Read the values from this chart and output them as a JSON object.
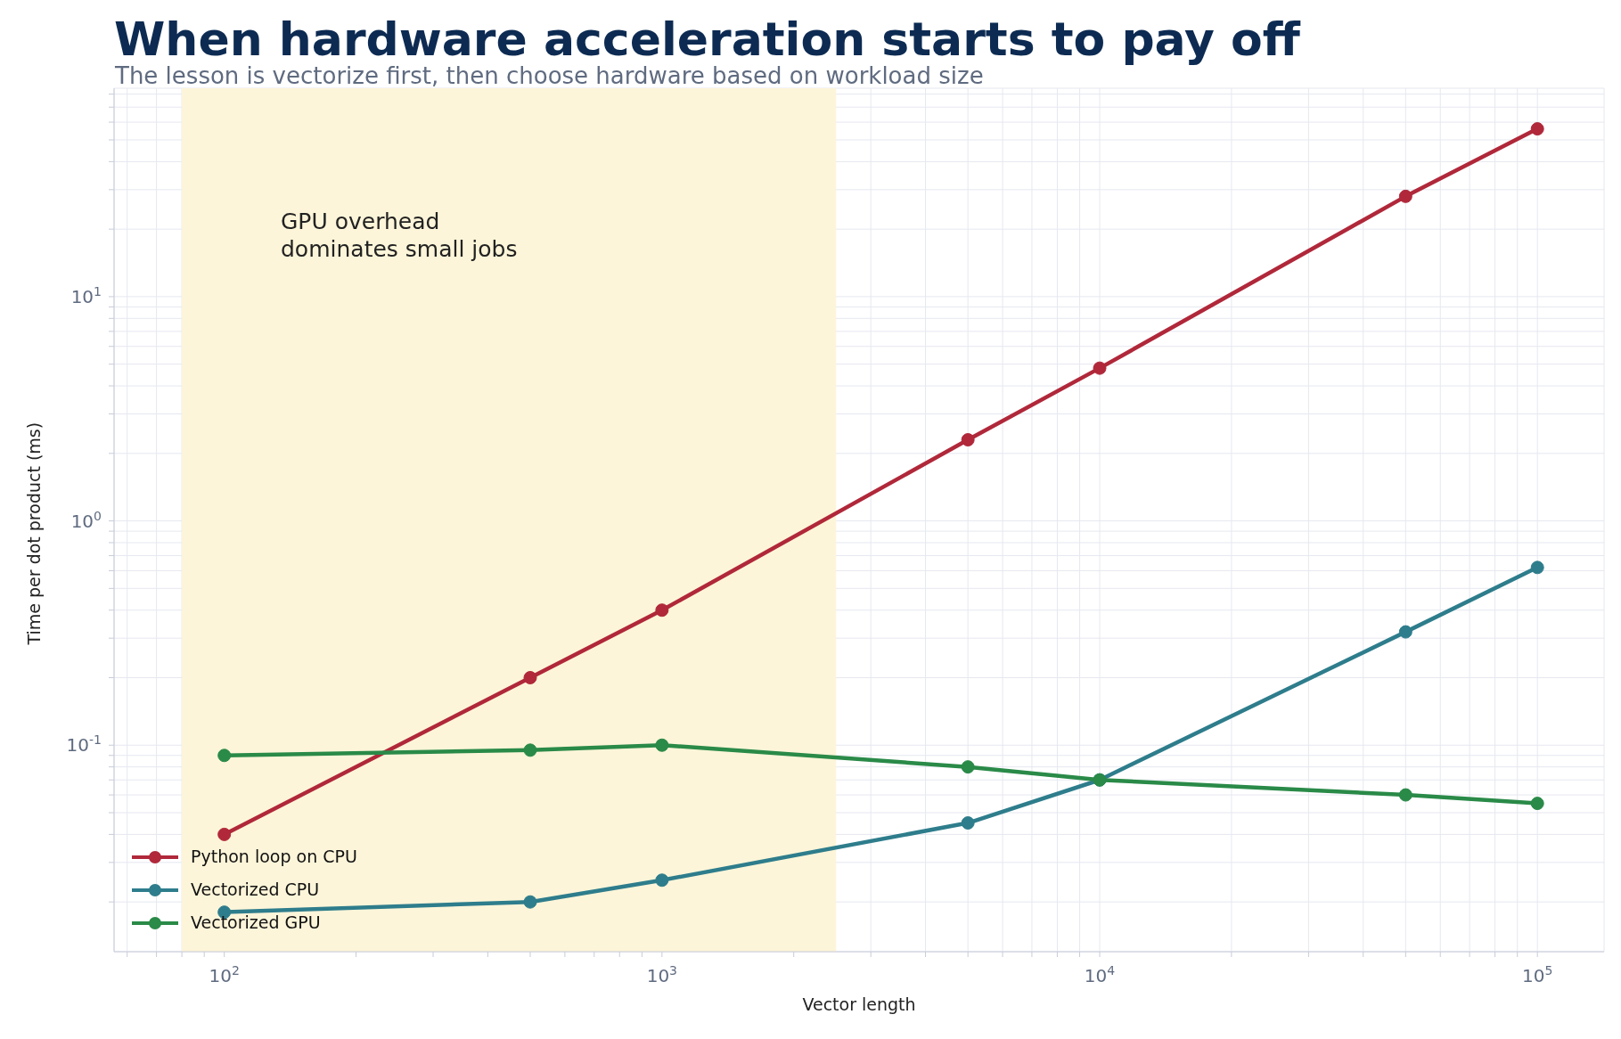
{
  "chart_data": {
    "type": "line",
    "title": "When hardware acceleration starts to pay off",
    "subtitle": "The lesson is vectorize first, then choose hardware based on workload size",
    "xlabel": "Vector length",
    "ylabel": "Time per dot product (ms)",
    "x": [
      100,
      500,
      1000,
      5000,
      10000,
      50000,
      100000
    ],
    "series": [
      {
        "name": "Python loop on CPU",
        "color": "#b0283a",
        "values": [
          0.04,
          0.2,
          0.4,
          2.3,
          4.8,
          28,
          56
        ]
      },
      {
        "name": "Vectorized CPU",
        "color": "#2e7d8c",
        "values": [
          0.018,
          0.02,
          0.025,
          0.045,
          0.07,
          0.32,
          0.62
        ]
      },
      {
        "name": "Vectorized GPU",
        "color": "#2a8a48",
        "values": [
          0.09,
          0.095,
          0.1,
          0.08,
          0.07,
          0.06,
          0.055
        ]
      }
    ],
    "log": "xy",
    "xlim": [
      56,
      142000
    ],
    "ylim": [
      0.012,
      85
    ],
    "xticks": [
      {
        "value": 60,
        "label": null
      },
      {
        "value": 70,
        "label": null
      },
      {
        "value": 80,
        "label": null
      },
      {
        "value": 90,
        "label": null
      },
      {
        "value": 100,
        "label": "10$^{2}$"
      },
      {
        "value": 200,
        "label": null
      },
      {
        "value": 300,
        "label": null
      },
      {
        "value": 400,
        "label": null
      },
      {
        "value": 500,
        "label": null
      },
      {
        "value": 600,
        "label": null
      },
      {
        "value": 700,
        "label": null
      },
      {
        "value": 800,
        "label": null
      },
      {
        "value": 900,
        "label": null
      },
      {
        "value": 1000,
        "label": "10$^{3}$"
      },
      {
        "value": 2000,
        "label": null
      },
      {
        "value": 3000,
        "label": null
      },
      {
        "value": 4000,
        "label": null
      },
      {
        "value": 5000,
        "label": null
      },
      {
        "value": 6000,
        "label": null
      },
      {
        "value": 7000,
        "label": null
      },
      {
        "value": 8000,
        "label": null
      },
      {
        "value": 9000,
        "label": null
      },
      {
        "value": 10000,
        "label": "10$^{4}$"
      },
      {
        "value": 20000,
        "label": null
      },
      {
        "value": 30000,
        "label": null
      },
      {
        "value": 40000,
        "label": null
      },
      {
        "value": 50000,
        "label": null
      },
      {
        "value": 60000,
        "label": null
      },
      {
        "value": 70000,
        "label": null
      },
      {
        "value": 80000,
        "label": null
      },
      {
        "value": 90000,
        "label": null
      },
      {
        "value": 100000,
        "label": "10$^{5}$"
      }
    ],
    "yticks": [
      {
        "value": 0.02,
        "label": null
      },
      {
        "value": 0.03,
        "label": null
      },
      {
        "value": 0.04,
        "label": null
      },
      {
        "value": 0.05,
        "label": null
      },
      {
        "value": 0.06,
        "label": null
      },
      {
        "value": 0.07,
        "label": null
      },
      {
        "value": 0.08,
        "label": null
      },
      {
        "value": 0.09,
        "label": null
      },
      {
        "value": 0.1,
        "label": "10$^{-1}$"
      },
      {
        "value": 0.2,
        "label": null
      },
      {
        "value": 0.3,
        "label": null
      },
      {
        "value": 0.4,
        "label": null
      },
      {
        "value": 0.5,
        "label": null
      },
      {
        "value": 0.6,
        "label": null
      },
      {
        "value": 0.7,
        "label": null
      },
      {
        "value": 0.8,
        "label": null
      },
      {
        "value": 0.9,
        "label": null
      },
      {
        "value": 1,
        "label": "10$^{0}$"
      },
      {
        "value": 2,
        "label": null
      },
      {
        "value": 3,
        "label": null
      },
      {
        "value": 4,
        "label": null
      },
      {
        "value": 5,
        "label": null
      },
      {
        "value": 6,
        "label": null
      },
      {
        "value": 7,
        "label": null
      },
      {
        "value": 8,
        "label": null
      },
      {
        "value": 9,
        "label": null
      },
      {
        "value": 10,
        "label": "10$^{1}$"
      },
      {
        "value": 20,
        "label": null
      },
      {
        "value": 30,
        "label": null
      },
      {
        "value": 40,
        "label": null
      },
      {
        "value": 50,
        "label": null
      },
      {
        "value": 60,
        "label": null
      },
      {
        "value": 70,
        "label": null
      },
      {
        "value": 80,
        "label": null
      }
    ],
    "bands": [
      {
        "axis": "x",
        "from": 80,
        "to": 2500,
        "color": "#fdf5d9"
      }
    ],
    "annotations": [
      "GPU overhead\ndominates small jobs"
    ],
    "grid": true,
    "legend": "bottom left",
    "marker": "circle",
    "line_style": "solid"
  }
}
